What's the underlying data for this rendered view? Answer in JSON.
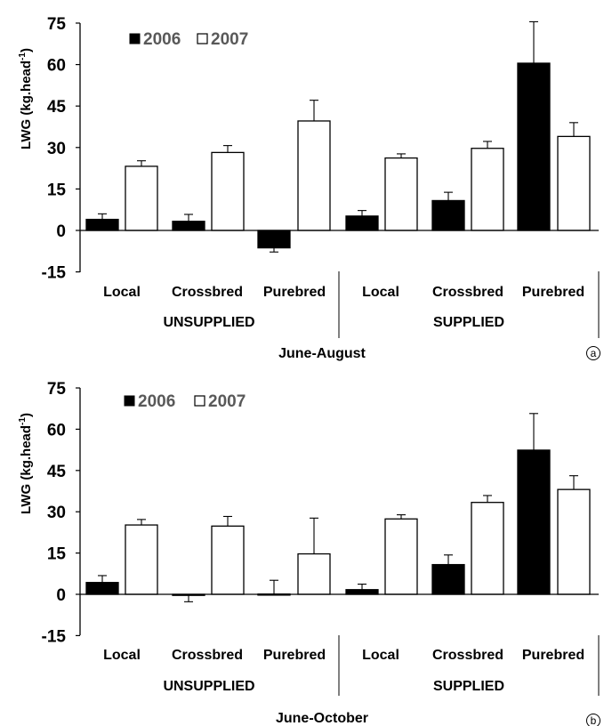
{
  "chart_data": [
    {
      "type": "bar",
      "badge": "a",
      "ylabel": "LWG (kg.head",
      "ylabel_sup": "-1",
      "ylabel_close": ")",
      "ylim": [
        -15,
        75
      ],
      "yticks": [
        "75",
        "60",
        "45",
        "30",
        "15",
        "0",
        "-15"
      ],
      "ytick_values": [
        75,
        60,
        45,
        30,
        15,
        0,
        -15
      ],
      "categories": [
        "Local",
        "Crossbred",
        "Purebred",
        "Local",
        "Crossbred",
        "Purebred"
      ],
      "groups": [
        "UNSUPPLIED",
        "SUPPLIED"
      ],
      "period": "June-August",
      "legend": [
        "2006",
        "2007"
      ],
      "series": [
        {
          "name": "2006",
          "color": "#000000",
          "values": [
            4,
            3.3,
            -6.3,
            5.2,
            10.8,
            60.5
          ],
          "errors": [
            2,
            2.5,
            1.5,
            2,
            3,
            15
          ]
        },
        {
          "name": "2007",
          "color": "#ffffff",
          "values": [
            23.2,
            28.2,
            39.6,
            26.2,
            29.7,
            34
          ],
          "errors": [
            2,
            2.5,
            7.5,
            1.5,
            2.5,
            5
          ]
        }
      ]
    },
    {
      "type": "bar",
      "badge": "b",
      "ylabel": "LWG (kg.head",
      "ylabel_sup": "-1",
      "ylabel_close": ")",
      "ylim": [
        -15,
        75
      ],
      "yticks": [
        "75",
        "60",
        "45",
        "30",
        "15",
        "0",
        "-15"
      ],
      "ytick_values": [
        75,
        60,
        45,
        30,
        15,
        0,
        -15
      ],
      "categories": [
        "Local",
        "Crossbred",
        "Purebred",
        "Local",
        "Crossbred",
        "Purebred"
      ],
      "groups": [
        "UNSUPPLIED",
        "SUPPLIED"
      ],
      "period": "June-October",
      "legend": [
        "2006",
        "2007"
      ],
      "series": [
        {
          "name": "2006",
          "color": "#000000",
          "values": [
            4.3,
            -0.2,
            0.1,
            1.7,
            10.8,
            52.4
          ],
          "errors": [
            2.5,
            2.5,
            5,
            2,
            3.5,
            13.3
          ]
        },
        {
          "name": "2007",
          "color": "#ffffff",
          "values": [
            25.2,
            24.8,
            14.7,
            27.4,
            33.4,
            38.1
          ],
          "errors": [
            2,
            3.5,
            13,
            1.5,
            2.5,
            5
          ]
        }
      ]
    }
  ]
}
